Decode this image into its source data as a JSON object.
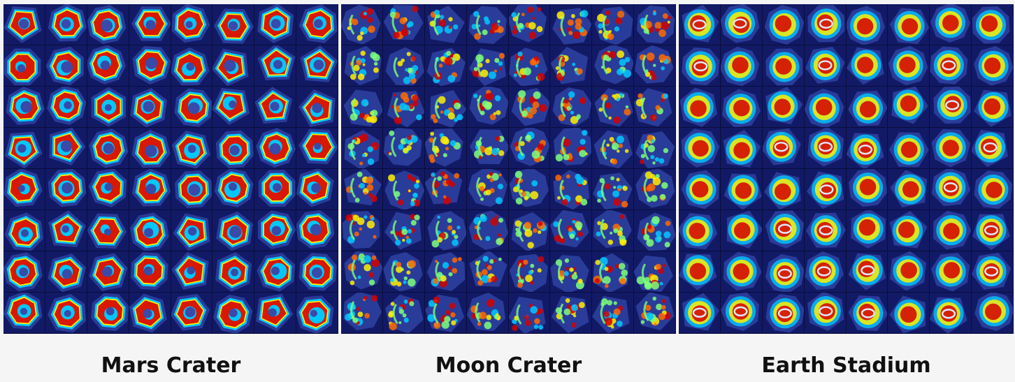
{
  "panels": [
    {
      "id": "mars",
      "caption": "Mars Crater",
      "style": "ring"
    },
    {
      "id": "moon",
      "caption": "Moon Crater",
      "style": "speckle"
    },
    {
      "id": "earth",
      "caption": "Earth Stadium",
      "style": "blob"
    }
  ],
  "grid": {
    "rows": 8,
    "cols": 8
  },
  "colormap": [
    "#00008f",
    "#0033ff",
    "#00c8ff",
    "#7dff7a",
    "#ffee00",
    "#ff6a00",
    "#d40000"
  ]
}
